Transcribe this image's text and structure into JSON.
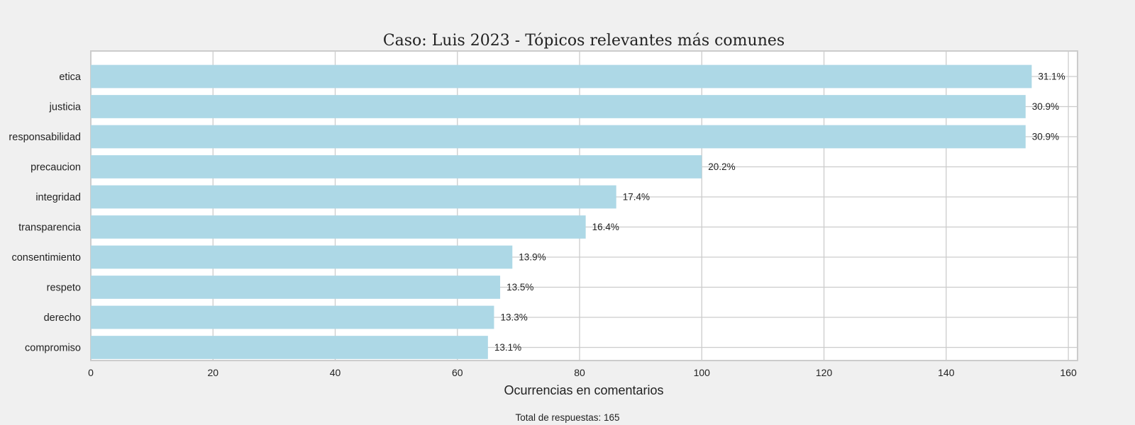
{
  "chart_data": {
    "type": "bar",
    "orientation": "horizontal",
    "title": "Caso: Luis 2023 - Tópicos relevantes más comunes",
    "xlabel": "Ocurrencias en comentarios",
    "ylabel": "",
    "categories": [
      "etica",
      "justicia",
      "responsabilidad",
      "precaucion",
      "integridad",
      "transparencia",
      "consentimiento",
      "respeto",
      "derecho",
      "compromiso"
    ],
    "values": [
      154,
      153,
      153,
      100,
      86,
      81,
      69,
      67,
      66,
      65
    ],
    "data_labels": [
      "31.1%",
      "30.9%",
      "30.9%",
      "20.2%",
      "17.4%",
      "16.4%",
      "13.9%",
      "13.5%",
      "13.3%",
      "13.1%"
    ],
    "xlim": [
      0,
      161.5
    ],
    "xticks": [
      "0",
      "20",
      "40",
      "60",
      "80",
      "100",
      "120",
      "140",
      "160"
    ],
    "grid": true,
    "bar_color": "#add8e6",
    "footnote": "Total de respuestas: 165"
  }
}
